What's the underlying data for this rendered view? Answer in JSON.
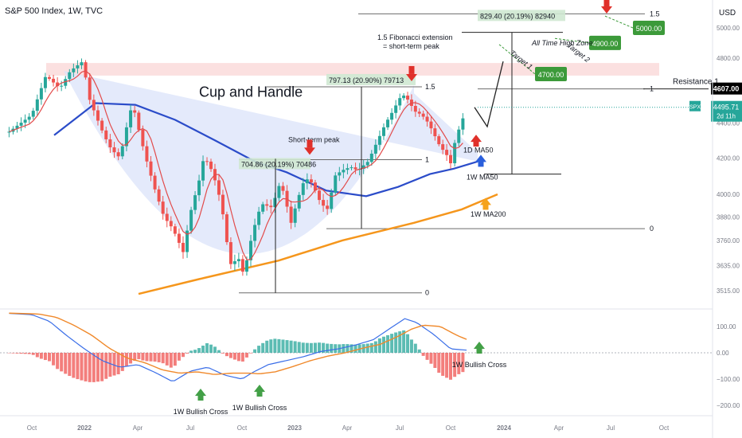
{
  "header": {
    "title": "S&P 500 Index, 1W, TVC",
    "currency": "USD"
  },
  "colors": {
    "ma50": "#2b4cc9",
    "ma200": "#f5961c",
    "ma_red": "#e24b4b",
    "up": "#26a69a",
    "down": "#ef5350",
    "cup_fill": "#dbe3fa",
    "ath_zone": "#f9d3d3",
    "macd": "#3a6ee8",
    "signal": "#f0892b",
    "tag_green": "#3c9a3a",
    "arrow_red": "#e0302a",
    "arrow_green": "#43a047",
    "arrow_blue": "#2a5fdc",
    "arrow_orange": "#f5a31c"
  },
  "chart_data": [
    {
      "type": "candlestick",
      "title": "S&P 500 Index, 1W, TVC",
      "x_ticks": [
        "Oct",
        "2022",
        "Apr",
        "Jul",
        "Oct",
        "2023",
        "Apr",
        "Jul",
        "Oct",
        "2024",
        "Apr",
        "Jul",
        "Oct"
      ],
      "y_ticks": [
        5000,
        4800,
        4600,
        4400,
        4200,
        4000,
        3880,
        3760,
        3635,
        3515
      ],
      "scale": "log",
      "last_price": {
        "symbol": "SPX",
        "value": "4495.71",
        "countdown": "2d 11h"
      },
      "resistance": {
        "label": "Resistance 1",
        "value": "4607.00"
      },
      "annotations": {
        "pattern": "Cup and Handle",
        "short_term_peak": "Short-term peak",
        "measure_1": "704.86 (20.19%) 70486",
        "measure_2": "797.13 (20.90%) 79713",
        "measure_3": "829.40 (20.19%) 82940",
        "fib_title": "1.5 Fibonacci extension = short-term peak",
        "ath_zone": "All Time High Zone",
        "target_1": "Target 1",
        "target_2": "Target 2",
        "target_tags": [
          "4700.00",
          "4900.00",
          "5000.00"
        ],
        "fib_one_point_five": "1.5",
        "fib_one": "1",
        "fib_zero": "0",
        "ma_labels": [
          "1D MA50",
          "1W MA50",
          "1W MA200"
        ]
      }
    },
    {
      "type": "macd",
      "y_ticks": [
        "100.00",
        "0.00",
        "−100.00",
        "−200.00"
      ],
      "labels": [
        "1W Bullish Cross",
        "1W Bullish Cross",
        "1W Bullish Cross"
      ]
    }
  ]
}
